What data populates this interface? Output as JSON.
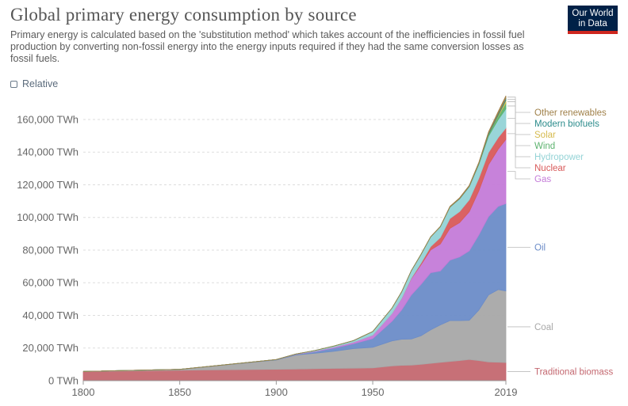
{
  "header": {
    "title": "Global primary energy consumption by source",
    "subtitle": "Primary energy is calculated based on the 'substitution method' which takes account of the inefficiencies in fossil fuel production by converting non-fossil energy into the energy inputs required if they had the same conversion losses as fossil fuels.",
    "logo_line1": "Our World",
    "logo_line2": "in Data"
  },
  "controls": {
    "relative_label": "Relative"
  },
  "colors": {
    "traditional_biomass": "#c46870",
    "coal": "#a8a8a8",
    "oil": "#6b8cc8",
    "gas": "#c47bd8",
    "nuclear": "#d85a5a",
    "hydropower": "#94d3d6",
    "wind": "#5db36f",
    "solar": "#d6bb4e",
    "modern_biofuels": "#2c8c8c",
    "other_renewables": "#a0814a"
  },
  "chart_data": {
    "type": "area",
    "stacked": true,
    "title": "Global primary energy consumption by source",
    "xlabel": "",
    "ylabel": "",
    "unit": "TWh",
    "xlim": [
      1800,
      2019
    ],
    "ylim": [
      0,
      175000
    ],
    "x_ticks": [
      "1800",
      "1850",
      "1900",
      "1950",
      "2019"
    ],
    "y_ticks": [
      "0 TWh",
      "20,000 TWh",
      "40,000 TWh",
      "60,000 TWh",
      "80,000 TWh",
      "100,000 TWh",
      "120,000 TWh",
      "140,000 TWh",
      "160,000 TWh"
    ],
    "y_tick_values": [
      0,
      20000,
      40000,
      60000,
      80000,
      100000,
      120000,
      140000,
      160000
    ],
    "x": [
      1800,
      1850,
      1900,
      1910,
      1920,
      1930,
      1940,
      1950,
      1960,
      1965,
      1970,
      1975,
      1980,
      1985,
      1990,
      1995,
      2000,
      2005,
      2010,
      2015,
      2019
    ],
    "series": [
      {
        "name": "Traditional biomass",
        "key": "traditional_biomass",
        "values": [
          5560,
          6380,
          7000,
          7150,
          7300,
          7500,
          7650,
          7800,
          9000,
          9400,
          9500,
          10000,
          10600,
          11200,
          11800,
          12300,
          13000,
          12300,
          11500,
          11300,
          11100
        ]
      },
      {
        "name": "Coal",
        "key": "coal",
        "values": [
          97,
          570,
          5700,
          8500,
          9500,
          10500,
          12000,
          12600,
          15400,
          16000,
          16000,
          17500,
          20500,
          23000,
          25000,
          24500,
          24000,
          31000,
          41000,
          44500,
          43800
        ]
      },
      {
        "name": "Oil",
        "key": "oil",
        "values": [
          0,
          0,
          180,
          400,
          1000,
          2000,
          3000,
          5400,
          12000,
          18000,
          27000,
          31500,
          35000,
          33000,
          37000,
          39000,
          42500,
          46000,
          48000,
          51000,
          53600
        ]
      },
      {
        "name": "Gas",
        "key": "gas",
        "values": [
          0,
          0,
          60,
          150,
          300,
          600,
          900,
          2100,
          4800,
          7000,
          10000,
          12000,
          14000,
          16500,
          19500,
          21000,
          24000,
          27000,
          31800,
          35000,
          39300
        ]
      },
      {
        "name": "Nuclear",
        "key": "nuclear",
        "values": [
          0,
          0,
          0,
          0,
          0,
          0,
          0,
          0,
          0,
          100,
          300,
          1000,
          2000,
          4000,
          6000,
          6800,
          7300,
          7700,
          7500,
          7100,
          7000
        ]
      },
      {
        "name": "Hydropower",
        "key": "hydropower",
        "values": [
          0,
          0,
          0,
          100,
          350,
          700,
          1000,
          2200,
          3300,
          4000,
          4600,
          5300,
          6000,
          6600,
          7000,
          7800,
          8000,
          8500,
          10000,
          11000,
          11700
        ]
      },
      {
        "name": "Wind",
        "key": "wind",
        "values": [
          0,
          0,
          0,
          0,
          0,
          0,
          0,
          0,
          0,
          0,
          0,
          0,
          0,
          0,
          10,
          20,
          90,
          280,
          900,
          2100,
          3500
        ]
      },
      {
        "name": "Solar",
        "key": "solar",
        "values": [
          0,
          0,
          0,
          0,
          0,
          0,
          0,
          0,
          0,
          0,
          0,
          0,
          0,
          0,
          0,
          0,
          5,
          20,
          80,
          600,
          1800
        ]
      },
      {
        "name": "Modern biofuels",
        "key": "modern_biofuels",
        "values": [
          0,
          0,
          0,
          0,
          0,
          0,
          0,
          0,
          0,
          0,
          0,
          0,
          0,
          30,
          80,
          150,
          200,
          340,
          700,
          950,
          1100
        ]
      },
      {
        "name": "Other renewables",
        "key": "other_renewables",
        "values": [
          0,
          0,
          0,
          0,
          0,
          0,
          0,
          0,
          0,
          0,
          0,
          50,
          100,
          200,
          350,
          450,
          550,
          650,
          900,
          1300,
          1600
        ]
      }
    ],
    "legend_top_labels": [
      "Other renewables",
      "Modern biofuels",
      "Solar",
      "Wind",
      "Hydropower",
      "Nuclear",
      "Gas"
    ],
    "legend_side_labels": [
      "Oil",
      "Coal",
      "Traditional biomass"
    ]
  }
}
